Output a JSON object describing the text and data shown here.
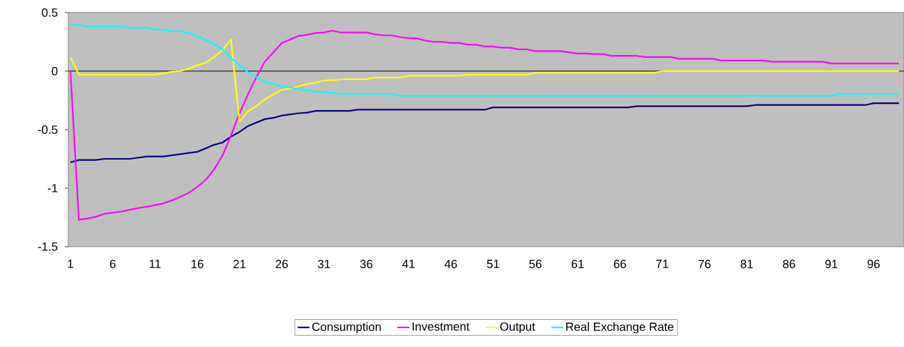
{
  "chart_data": {
    "type": "line",
    "categories": [
      "1",
      null,
      null,
      null,
      null,
      "6",
      null,
      null,
      null,
      null,
      "11",
      null,
      null,
      null,
      null,
      "16",
      null,
      null,
      null,
      null,
      "21",
      null,
      null,
      null,
      null,
      "26",
      null,
      null,
      null,
      null,
      "31",
      null,
      null,
      null,
      null,
      "36",
      null,
      null,
      null,
      null,
      "41",
      null,
      null,
      null,
      null,
      "46",
      null,
      null,
      null,
      null,
      "51",
      null,
      null,
      null,
      null,
      "56",
      null,
      null,
      null,
      null,
      "61",
      null,
      null,
      null,
      null,
      "66",
      null,
      null,
      null,
      null,
      "71",
      null,
      null,
      null,
      null,
      "76",
      null,
      null,
      null,
      null,
      "81",
      null,
      null,
      null,
      null,
      "86",
      null,
      null,
      null,
      null,
      "91",
      null,
      null,
      null,
      null,
      "96",
      null,
      null,
      null
    ],
    "series": [
      {
        "name": "Consumption",
        "color": "#000080",
        "values": [
          -0.78,
          -0.76,
          -0.76,
          -0.76,
          -0.75,
          -0.75,
          -0.75,
          -0.75,
          -0.74,
          -0.73,
          -0.73,
          -0.73,
          -0.72,
          -0.71,
          -0.7,
          -0.69,
          -0.66,
          -0.63,
          -0.61,
          -0.56,
          -0.52,
          -0.47,
          -0.44,
          -0.41,
          -0.4,
          -0.38,
          -0.37,
          -0.36,
          -0.355,
          -0.34,
          -0.34,
          -0.34,
          -0.34,
          -0.34,
          -0.33,
          -0.33,
          -0.33,
          -0.33,
          -0.33,
          -0.33,
          -0.33,
          -0.33,
          -0.33,
          -0.33,
          -0.33,
          -0.33,
          -0.33,
          -0.33,
          -0.33,
          -0.33,
          -0.31,
          -0.31,
          -0.31,
          -0.31,
          -0.31,
          -0.31,
          -0.31,
          -0.31,
          -0.31,
          -0.31,
          -0.31,
          -0.31,
          -0.31,
          -0.31,
          -0.31,
          -0.31,
          -0.31,
          -0.3,
          -0.3,
          -0.3,
          -0.3,
          -0.3,
          -0.3,
          -0.3,
          -0.3,
          -0.3,
          -0.3,
          -0.3,
          -0.3,
          -0.3,
          -0.3,
          -0.29,
          -0.29,
          -0.29,
          -0.29,
          -0.29,
          -0.29,
          -0.29,
          -0.29,
          -0.29,
          -0.29,
          -0.29,
          -0.29,
          -0.29,
          -0.29,
          -0.275,
          -0.275,
          -0.275,
          -0.275
        ]
      },
      {
        "name": "Investment",
        "color": "#ff00ff",
        "values": [
          0,
          -1.27,
          -1.26,
          -1.245,
          -1.22,
          -1.21,
          -1.2,
          -1.185,
          -1.17,
          -1.16,
          -1.145,
          -1.13,
          -1.105,
          -1.075,
          -1.04,
          -0.99,
          -0.93,
          -0.84,
          -0.72,
          -0.55,
          -0.36,
          -0.2,
          -0.05,
          0.08,
          0.16,
          0.24,
          0.27,
          0.3,
          0.31,
          0.325,
          0.33,
          0.345,
          0.33,
          0.33,
          0.33,
          0.33,
          0.315,
          0.305,
          0.305,
          0.29,
          0.28,
          0.28,
          0.26,
          0.25,
          0.25,
          0.24,
          0.24,
          0.225,
          0.225,
          0.21,
          0.21,
          0.2,
          0.2,
          0.185,
          0.185,
          0.17,
          0.17,
          0.17,
          0.17,
          0.16,
          0.15,
          0.15,
          0.145,
          0.145,
          0.13,
          0.13,
          0.13,
          0.13,
          0.12,
          0.12,
          0.12,
          0.12,
          0.105,
          0.105,
          0.105,
          0.105,
          0.105,
          0.09,
          0.09,
          0.09,
          0.09,
          0.09,
          0.09,
          0.08,
          0.08,
          0.08,
          0.08,
          0.08,
          0.08,
          0.08,
          0.065,
          0.065,
          0.065,
          0.065,
          0.065,
          0.065,
          0.065,
          0.065,
          0.065
        ]
      },
      {
        "name": "Output",
        "color": "#ffff00",
        "values": [
          0.12,
          -0.03,
          -0.03,
          -0.03,
          -0.03,
          -0.03,
          -0.03,
          -0.03,
          -0.03,
          -0.03,
          -0.03,
          -0.02,
          -0.005,
          0,
          0.02,
          0.05,
          0.07,
          0.12,
          0.18,
          0.27,
          -0.43,
          -0.345,
          -0.3,
          -0.24,
          -0.2,
          -0.16,
          -0.15,
          -0.13,
          -0.11,
          -0.1,
          -0.08,
          -0.08,
          -0.07,
          -0.07,
          -0.07,
          -0.07,
          -0.055,
          -0.055,
          -0.055,
          -0.055,
          -0.04,
          -0.04,
          -0.04,
          -0.04,
          -0.04,
          -0.04,
          -0.04,
          -0.03,
          -0.03,
          -0.03,
          -0.03,
          -0.03,
          -0.03,
          -0.03,
          -0.03,
          -0.015,
          -0.015,
          -0.015,
          -0.015,
          -0.015,
          -0.015,
          -0.015,
          -0.015,
          -0.015,
          -0.015,
          -0.015,
          -0.015,
          -0.015,
          -0.015,
          -0.015,
          0,
          0,
          0,
          0,
          0,
          0,
          0,
          0,
          0,
          0,
          0,
          0,
          0,
          0,
          0,
          0,
          0,
          0,
          0,
          0,
          0,
          0,
          0,
          0,
          0,
          0,
          0,
          0,
          0
        ]
      },
      {
        "name": "Real Exchange Rate",
        "color": "#00ffff",
        "values": [
          0.395,
          0.395,
          0.38,
          0.38,
          0.38,
          0.38,
          0.38,
          0.37,
          0.37,
          0.37,
          0.355,
          0.355,
          0.34,
          0.34,
          0.325,
          0.3,
          0.265,
          0.23,
          0.185,
          0.11,
          0.05,
          -0.01,
          -0.05,
          -0.09,
          -0.11,
          -0.13,
          -0.14,
          -0.155,
          -0.165,
          -0.175,
          -0.18,
          -0.185,
          -0.195,
          -0.195,
          -0.195,
          -0.195,
          -0.195,
          -0.195,
          -0.195,
          -0.21,
          -0.21,
          -0.21,
          -0.21,
          -0.21,
          -0.21,
          -0.21,
          -0.21,
          -0.21,
          -0.21,
          -0.21,
          -0.21,
          -0.21,
          -0.21,
          -0.21,
          -0.21,
          -0.21,
          -0.21,
          -0.21,
          -0.21,
          -0.21,
          -0.21,
          -0.21,
          -0.21,
          -0.21,
          -0.21,
          -0.21,
          -0.21,
          -0.21,
          -0.21,
          -0.21,
          -0.21,
          -0.21,
          -0.21,
          -0.21,
          -0.21,
          -0.21,
          -0.21,
          -0.21,
          -0.21,
          -0.21,
          -0.21,
          -0.21,
          -0.21,
          -0.21,
          -0.21,
          -0.21,
          -0.21,
          -0.21,
          -0.21,
          -0.21,
          -0.21,
          -0.195,
          -0.195,
          -0.195,
          -0.195,
          -0.195,
          -0.195,
          -0.195,
          -0.195
        ]
      }
    ],
    "ylim": [
      -1.5,
      0.5
    ],
    "yticks": [
      0.5,
      0,
      -0.5,
      -1,
      -1.5
    ],
    "ref_lines": [
      {
        "axis": "y",
        "value": 0,
        "color": "#000000"
      }
    ],
    "legend": "bottom"
  }
}
